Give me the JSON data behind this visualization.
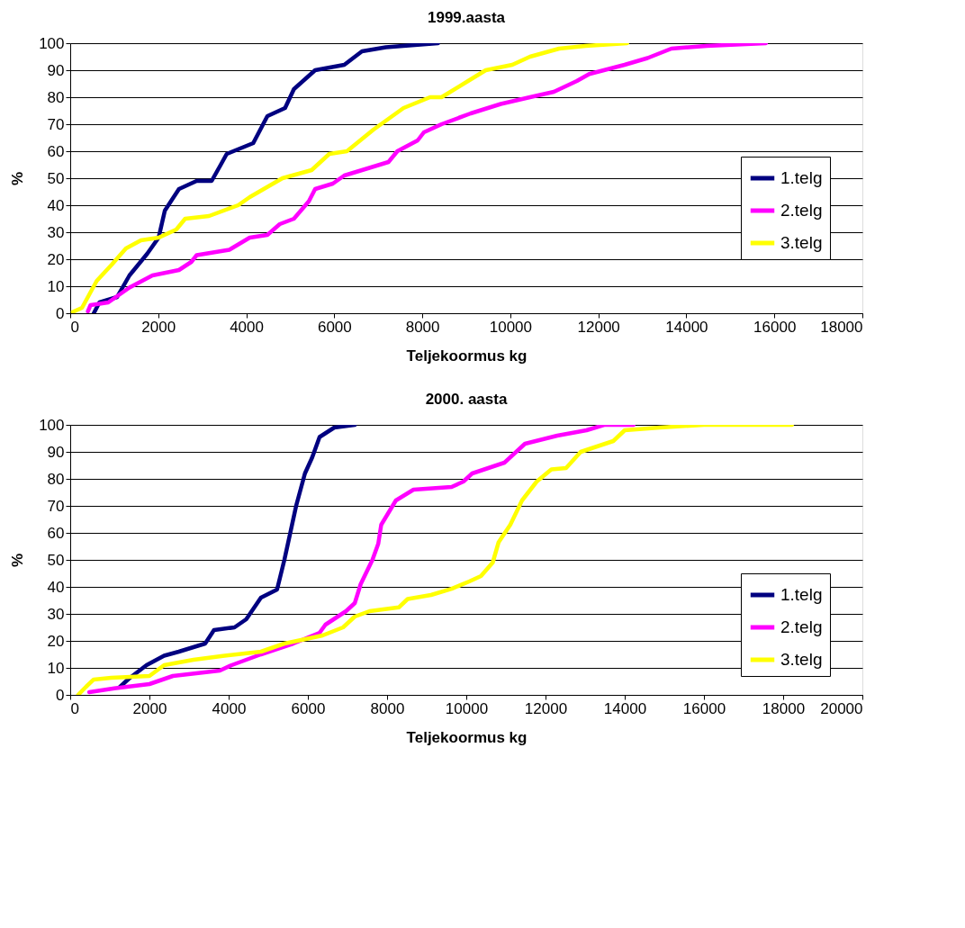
{
  "chart_data": [
    {
      "type": "line",
      "title": "1999.aasta",
      "xlabel": "Teljekoormus kg",
      "ylabel": "%",
      "xlim": [
        0,
        18000
      ],
      "ylim": [
        0,
        100
      ],
      "xticks": [
        0,
        2000,
        4000,
        6000,
        8000,
        10000,
        12000,
        14000,
        16000,
        18000
      ],
      "yticks": [
        0,
        10,
        20,
        30,
        40,
        50,
        60,
        70,
        80,
        90,
        100
      ],
      "grid": "y",
      "legend": "right",
      "marker": "none",
      "line_style": "solid",
      "series": [
        {
          "name": "1.telg",
          "color": "#000080",
          "x": [
            536,
            663,
            1065,
            1346,
            1748,
            2009,
            2150,
            2471,
            2873,
            3214,
            3455,
            3556,
            4159,
            4480,
            4882,
            5083,
            5565,
            6228,
            6630,
            7172,
            8357
          ],
          "values": [
            0,
            4,
            6,
            14,
            22,
            28,
            38,
            46,
            49,
            49,
            56,
            59,
            63,
            73,
            76,
            83,
            90,
            92,
            97,
            98.5,
            100
          ]
        },
        {
          "name": "2.telg",
          "color": "#ff00ff",
          "x": [
            402,
            462,
            864,
            1346,
            1868,
            2471,
            2752,
            2873,
            3616,
            4079,
            4480,
            4761,
            5083,
            5424,
            5565,
            5967,
            6228,
            6831,
            7232,
            7433,
            7895,
            8036,
            8438,
            9100,
            9784,
            10447,
            10990,
            11512,
            11793,
            12597,
            13119,
            13661,
            14465,
            15810
          ],
          "values": [
            0.7,
            3,
            4,
            9.5,
            14,
            16,
            19,
            21.5,
            23.5,
            28,
            29,
            33,
            35,
            41.5,
            46,
            48,
            51,
            54,
            56,
            60,
            64,
            67,
            70,
            74,
            77.5,
            80,
            82,
            86,
            88.6,
            92,
            94.5,
            98,
            99,
            100
          ]
        },
        {
          "name": "3.telg",
          "color": "#ffff00",
          "x": [
            60,
            268,
            603,
            944,
            1266,
            1607,
            2009,
            2411,
            2612,
            3154,
            3817,
            4079,
            4822,
            5485,
            5887,
            6288,
            6891,
            7574,
            8177,
            8438,
            9040,
            9442,
            10045,
            10447,
            11110,
            11713,
            12657
          ],
          "values": [
            0.5,
            2,
            12,
            18,
            24,
            27,
            28,
            31,
            35,
            36,
            40,
            43,
            50,
            53,
            59,
            60,
            68,
            76,
            80,
            80,
            86,
            90,
            92,
            95,
            98,
            99,
            100
          ]
        }
      ]
    },
    {
      "type": "line",
      "title": "2000. aasta",
      "xlabel": "Teljekoormus kg",
      "ylabel": "%",
      "xlim": [
        0,
        20000
      ],
      "ylim": [
        0,
        100
      ],
      "xticks": [
        0,
        2000,
        4000,
        6000,
        8000,
        10000,
        12000,
        14000,
        16000,
        18000,
        20000
      ],
      "yticks": [
        0,
        10,
        20,
        30,
        40,
        50,
        60,
        70,
        80,
        90,
        100
      ],
      "grid": "y",
      "legend": "bottom right",
      "marker": "none",
      "line_style": "solid",
      "series": [
        {
          "name": "1.telg",
          "color": "#000080",
          "x": [
            1259,
            1481,
            1926,
            2370,
            2741,
            3407,
            3630,
            4148,
            4444,
            4815,
            5222,
            5407,
            5556,
            5704,
            5926,
            6111,
            6296,
            6667,
            7185
          ],
          "values": [
            3,
            6,
            11,
            14.5,
            16,
            19,
            24,
            25,
            28,
            36,
            39,
            50,
            60,
            70,
            82,
            88,
            95.5,
            99,
            100
          ]
        },
        {
          "name": "2.telg",
          "color": "#ff00ff",
          "x": [
            480,
            1111,
            2000,
            2593,
            3778,
            4074,
            4815,
            5630,
            6296,
            6444,
            6963,
            7185,
            7333,
            7630,
            7778,
            7852,
            8222,
            8667,
            9630,
            9926,
            10148,
            10963,
            11481,
            12296,
            13037,
            13481,
            14222
          ],
          "values": [
            1,
            2.4,
            4,
            7,
            9,
            11,
            15,
            19,
            23,
            26,
            31,
            34,
            41,
            50,
            56,
            63,
            72,
            76,
            77,
            79,
            82,
            86,
            93,
            96,
            98,
            100,
            100
          ]
        },
        {
          "name": "3.telg",
          "color": "#ffff00",
          "x": [
            200,
            400,
            593,
            1037,
            2000,
            2370,
            3111,
            3852,
            4815,
            5407,
            6370,
            6889,
            7185,
            7556,
            8296,
            8519,
            9111,
            9630,
            10074,
            10370,
            10667,
            10815,
            11111,
            11407,
            11778,
            12148,
            12519,
            12889,
            13711,
            14000,
            14889,
            16000,
            18222
          ],
          "values": [
            0,
            3,
            5.7,
            6.3,
            7,
            11,
            13,
            14.4,
            16,
            19,
            22,
            25,
            29,
            31,
            32.4,
            35.5,
            37,
            39.3,
            42,
            44,
            49,
            56.5,
            63,
            72,
            79,
            83.5,
            84,
            90,
            94,
            98,
            99,
            100,
            100
          ]
        }
      ]
    }
  ]
}
